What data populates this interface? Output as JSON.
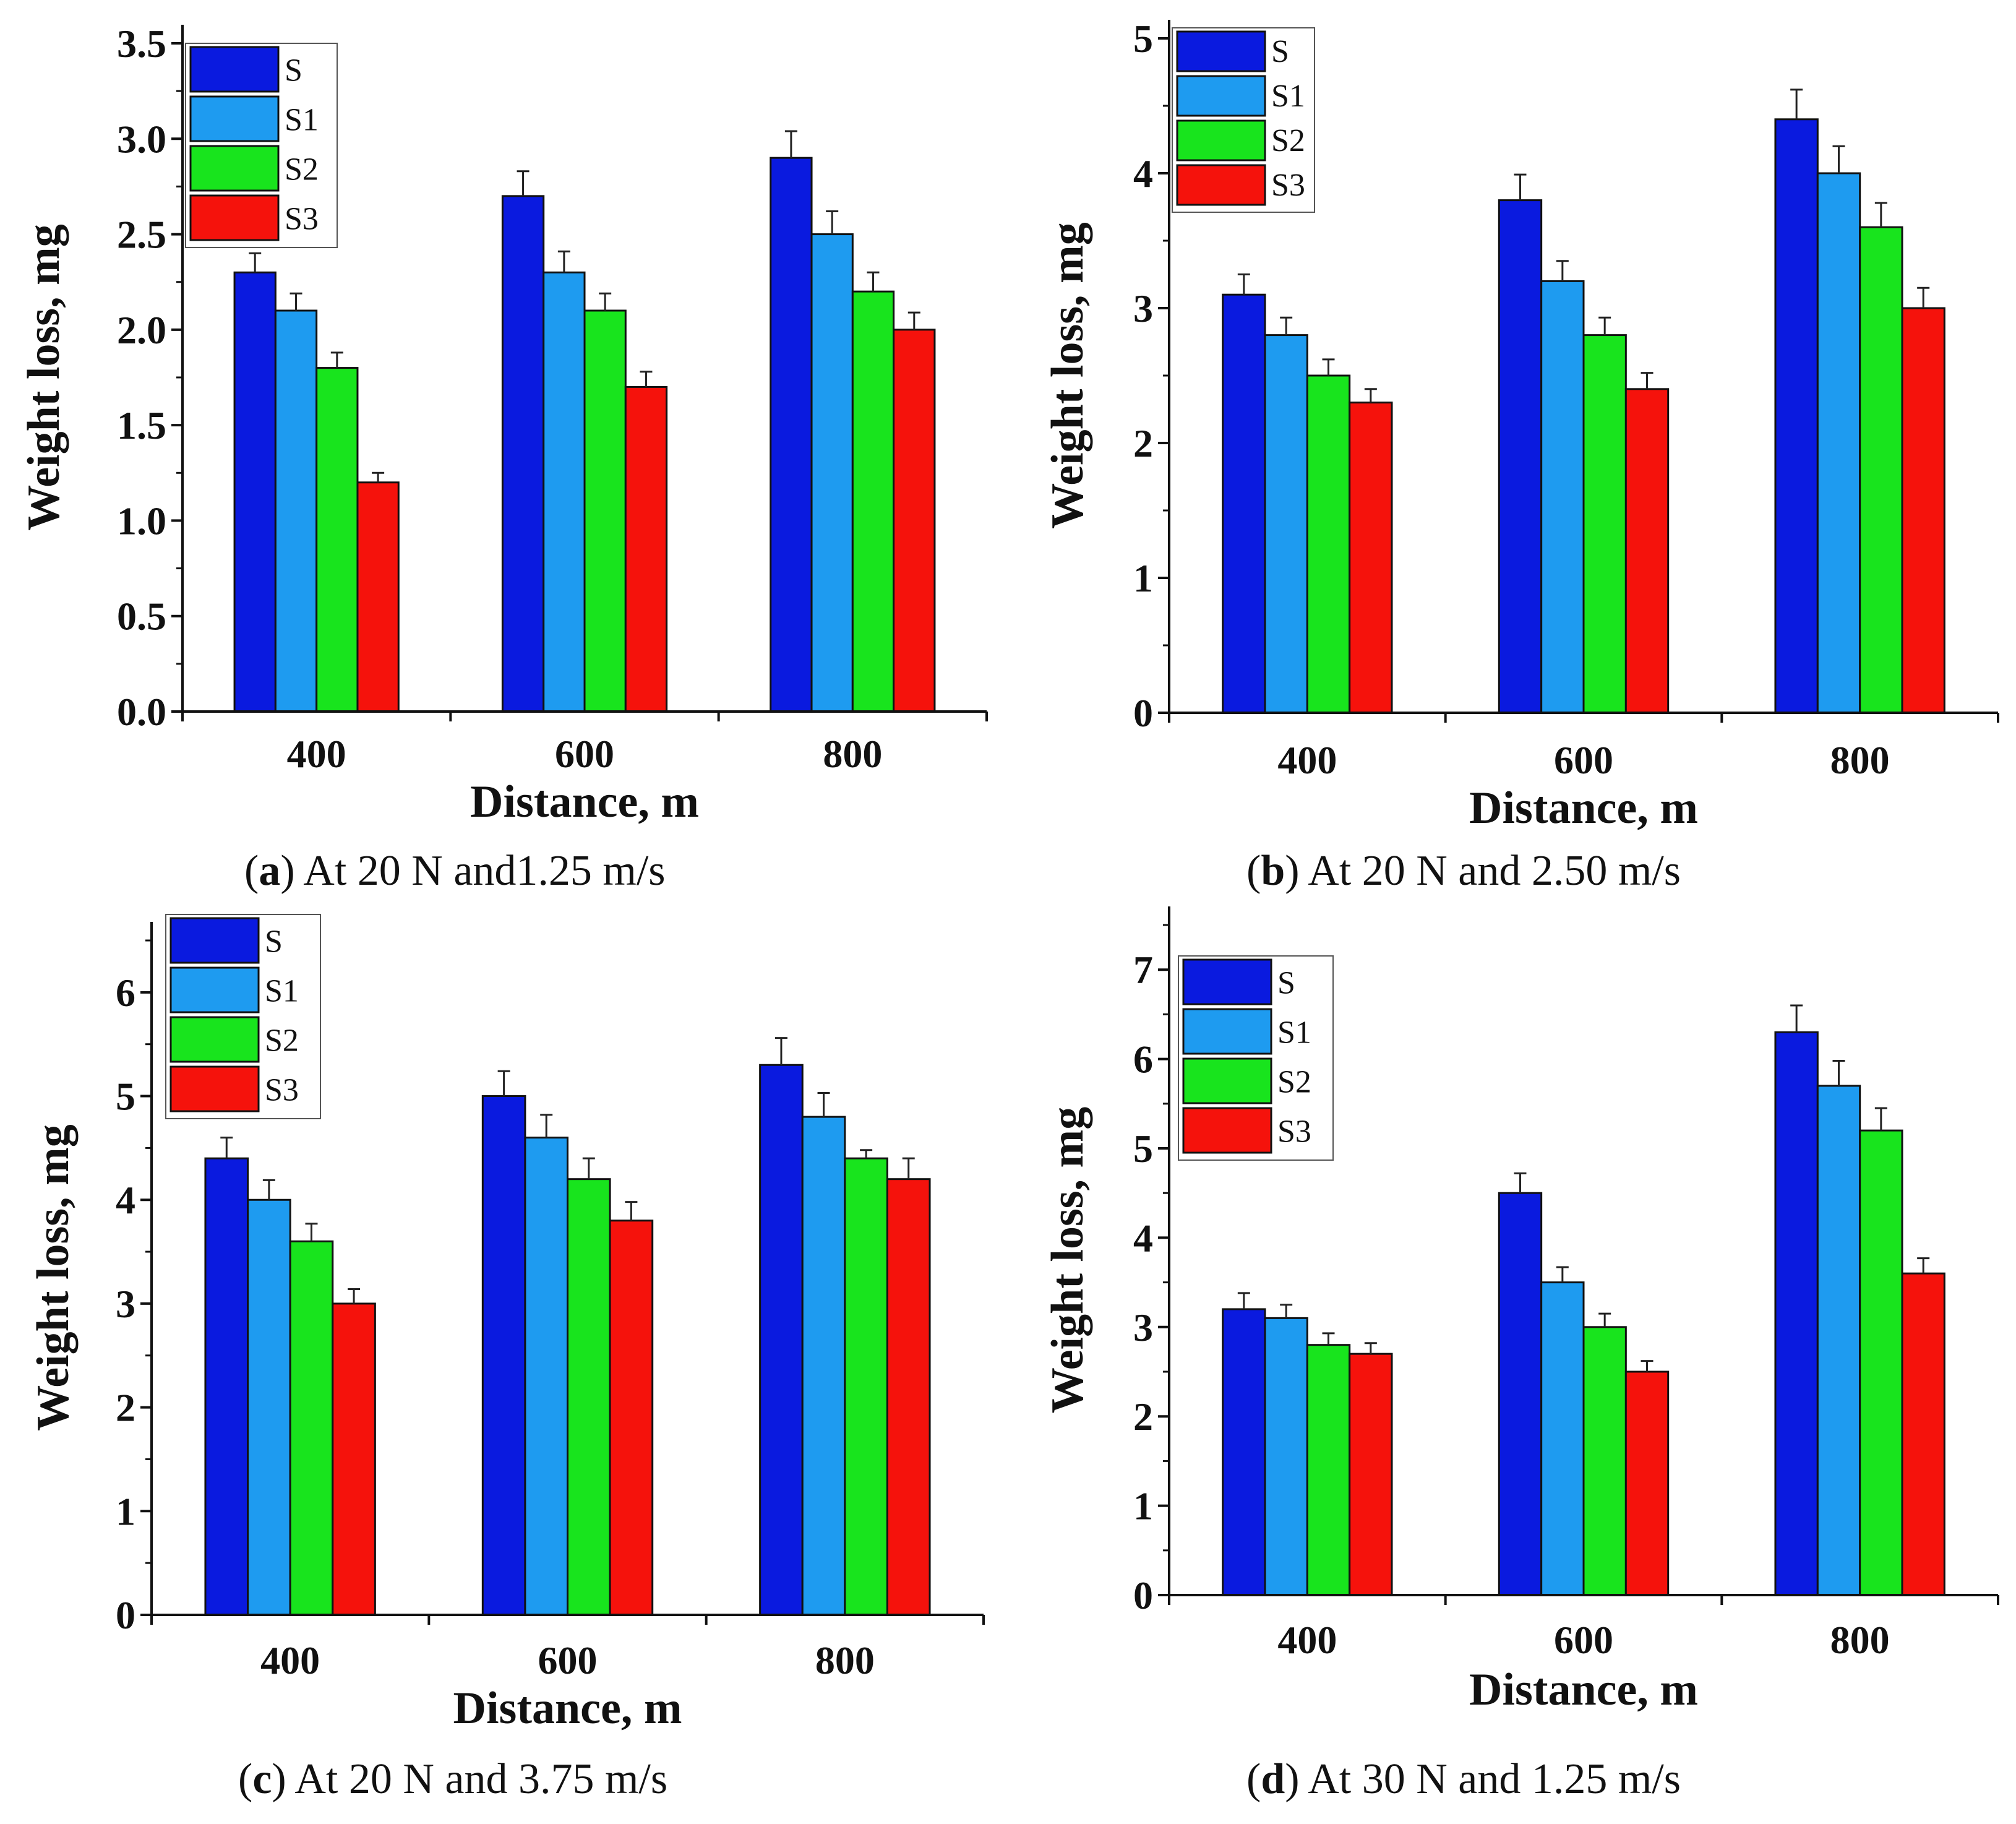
{
  "chart_data": [
    {
      "type": "bar",
      "panel": "a",
      "caption_letter": "a",
      "caption_text": " At 20 N and1.25 m/s",
      "xlabel": "Distance, m",
      "ylabel": "Weight loss, mg",
      "categories": [
        "400",
        "600",
        "800"
      ],
      "ylim": [
        0,
        3.5
      ],
      "yticks": [
        "0.0",
        "0.5",
        "1.0",
        "1.5",
        "2.0",
        "2.5",
        "3.0",
        "3.5"
      ],
      "ytick_values": [
        0,
        0.5,
        1.0,
        1.5,
        2.0,
        2.5,
        3.0,
        3.5
      ],
      "legend_position": "top-left",
      "series": [
        {
          "name": "S",
          "color": "#0a1adf",
          "values": [
            2.3,
            2.7,
            2.9
          ],
          "errors": [
            0.1,
            0.13,
            0.14
          ]
        },
        {
          "name": "S1",
          "color": "#1e9bf0",
          "values": [
            2.1,
            2.3,
            2.5
          ],
          "errors": [
            0.09,
            0.11,
            0.12
          ]
        },
        {
          "name": "S2",
          "color": "#18e41d",
          "values": [
            1.8,
            2.1,
            2.2
          ],
          "errors": [
            0.08,
            0.09,
            0.1
          ]
        },
        {
          "name": "S3",
          "color": "#f5120c",
          "values": [
            1.2,
            1.7,
            2.0
          ],
          "errors": [
            0.05,
            0.08,
            0.09
          ]
        }
      ]
    },
    {
      "type": "bar",
      "panel": "b",
      "caption_letter": "b",
      "caption_text": " At 20 N and 2.50 m/s",
      "xlabel": "Distance, m",
      "ylabel": "Weight loss, mg",
      "categories": [
        "400",
        "600",
        "800"
      ],
      "ylim": [
        0,
        5
      ],
      "yticks": [
        "0",
        "1",
        "2",
        "3",
        "4",
        "5"
      ],
      "ytick_values": [
        0,
        1,
        2,
        3,
        4,
        5
      ],
      "legend_position": "top-left",
      "series": [
        {
          "name": "S",
          "color": "#0a1adf",
          "values": [
            3.1,
            3.8,
            4.4
          ],
          "errors": [
            0.15,
            0.19,
            0.22
          ]
        },
        {
          "name": "S1",
          "color": "#1e9bf0",
          "values": [
            2.8,
            3.2,
            4.0
          ],
          "errors": [
            0.13,
            0.15,
            0.2
          ]
        },
        {
          "name": "S2",
          "color": "#18e41d",
          "values": [
            2.5,
            2.8,
            3.6
          ],
          "errors": [
            0.12,
            0.13,
            0.18
          ]
        },
        {
          "name": "S3",
          "color": "#f5120c",
          "values": [
            2.3,
            2.4,
            3.0
          ],
          "errors": [
            0.1,
            0.12,
            0.15
          ]
        }
      ]
    },
    {
      "type": "bar",
      "panel": "c",
      "caption_letter": "c",
      "caption_text": " At 20 N and 3.75 m/s",
      "xlabel": "Distance, m",
      "ylabel": "Weight loss, mg",
      "categories": [
        "400",
        "600",
        "800"
      ],
      "ylim": [
        0,
        6.5
      ],
      "yticks": [
        "0",
        "1",
        "2",
        "3",
        "4",
        "5",
        "6"
      ],
      "ytick_values": [
        0,
        1,
        2,
        3,
        4,
        5,
        6
      ],
      "legend_position": "top-left",
      "series": [
        {
          "name": "S",
          "color": "#0a1adf",
          "values": [
            4.4,
            5.0,
            5.3
          ],
          "errors": [
            0.2,
            0.24,
            0.26
          ]
        },
        {
          "name": "S1",
          "color": "#1e9bf0",
          "values": [
            4.0,
            4.6,
            4.8
          ],
          "errors": [
            0.19,
            0.22,
            0.23
          ]
        },
        {
          "name": "S2",
          "color": "#18e41d",
          "values": [
            3.6,
            4.2,
            4.4
          ],
          "errors": [
            0.17,
            0.2,
            0.08
          ]
        },
        {
          "name": "S3",
          "color": "#f5120c",
          "values": [
            3.0,
            3.8,
            4.2
          ],
          "errors": [
            0.14,
            0.18,
            0.2
          ]
        }
      ]
    },
    {
      "type": "bar",
      "panel": "d",
      "caption_letter": "d",
      "caption_text": " At 30 N and 1.25 m/s",
      "xlabel": "Distance, m",
      "ylabel": "Weight loss, mg",
      "categories": [
        "400",
        "600",
        "800"
      ],
      "ylim": [
        0,
        7.5
      ],
      "yticks": [
        "0",
        "1",
        "2",
        "3",
        "4",
        "5",
        "6",
        "7"
      ],
      "ytick_values": [
        0,
        1,
        2,
        3,
        4,
        5,
        6,
        7
      ],
      "legend_position": "top-left",
      "series": [
        {
          "name": "S",
          "color": "#0a1adf",
          "values": [
            3.2,
            4.5,
            6.3
          ],
          "errors": [
            0.18,
            0.22,
            0.3
          ]
        },
        {
          "name": "S1",
          "color": "#1e9bf0",
          "values": [
            3.1,
            3.5,
            5.7
          ],
          "errors": [
            0.15,
            0.17,
            0.28
          ]
        },
        {
          "name": "S2",
          "color": "#18e41d",
          "values": [
            2.8,
            3.0,
            5.2
          ],
          "errors": [
            0.13,
            0.15,
            0.25
          ]
        },
        {
          "name": "S3",
          "color": "#f5120c",
          "values": [
            2.7,
            2.5,
            3.6
          ],
          "errors": [
            0.12,
            0.12,
            0.17
          ]
        }
      ]
    }
  ]
}
